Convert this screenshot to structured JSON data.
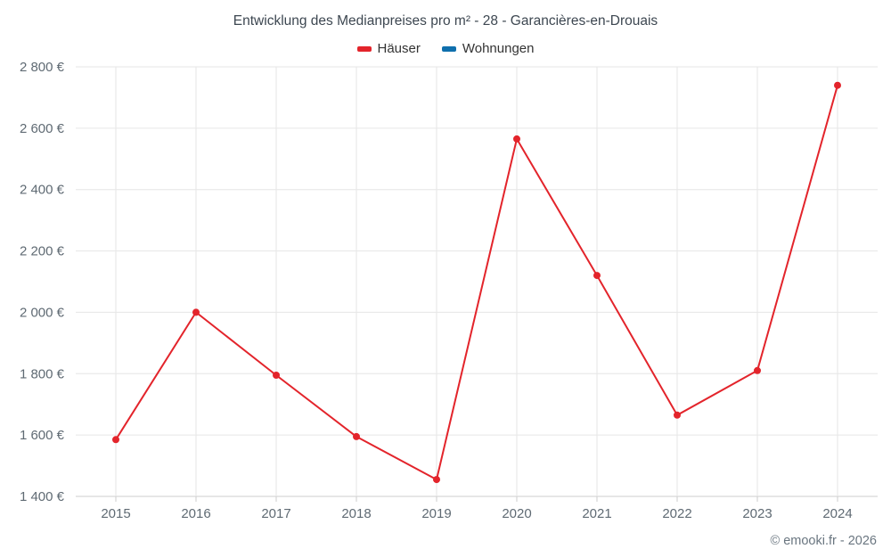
{
  "footer": "© emooki.fr - 2026",
  "chart_data": {
    "type": "line",
    "title": "Entwicklung des Medianpreises pro m² - 28 - Garancières-en-Drouais",
    "categories": [
      "2015",
      "2016",
      "2017",
      "2018",
      "2019",
      "2020",
      "2021",
      "2022",
      "2023",
      "2024"
    ],
    "series": [
      {
        "name": "Häuser",
        "color": "#e3242b",
        "values": [
          1585,
          2000,
          1795,
          1595,
          1455,
          2565,
          2120,
          1665,
          1810,
          2740
        ]
      },
      {
        "name": "Wohnungen",
        "color": "#0f6fad",
        "values": []
      }
    ],
    "xlabel": "",
    "ylabel": "",
    "ylim": [
      1400,
      2800
    ],
    "ytick_step": 200,
    "ytick_suffix": " €",
    "grid": true,
    "legend_position": "top",
    "gridline_color": "#e6e6e6",
    "axis_line_color": "#cccccc",
    "marker_radius": 4
  }
}
